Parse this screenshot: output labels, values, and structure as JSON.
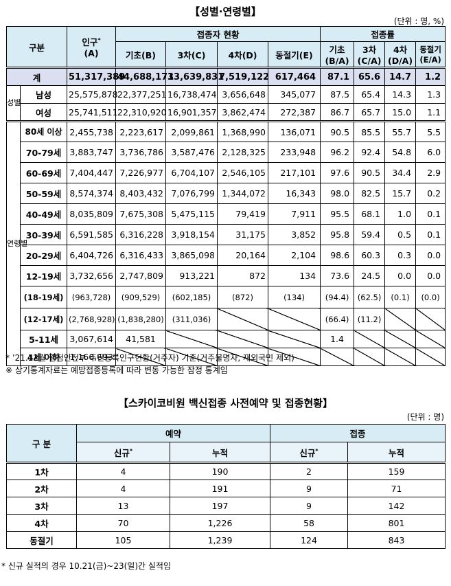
{
  "doc": {
    "title1": "【성별·연령별】",
    "unit1": "(단위 : 명, %)",
    "title2": "【스카이코비원 백신접종 사전예약 및 접종현황】",
    "unit2": "(단위 : 명)",
    "note1": "* ’21.12월 행정안전부 주민등록인구현황(거주자) 기준(거주불명자, 재외국민 제외)",
    "note2": "※ 상기통계자료는 예방접종등록에 따라 변동 가능한 잠정 통계임",
    "note3": "* 신규 실적의 경우 10.21(금)~23(일)간 실적임"
  },
  "t1": {
    "h_gubun": "구분",
    "h_pop": "인구",
    "h_pop_sup": "*",
    "h_pop_sub": "(A)",
    "h_vax": "접종자 현황",
    "h_rate": "접종률",
    "h_basic": "기초(B)",
    "h_3rd": "3차(C)",
    "h_4th": "4차(D)",
    "h_winter": "동절기(E)",
    "h_r_basic": "기초",
    "h_r_basic2": "(B/A)",
    "h_r_3rd": "3차",
    "h_r_3rd2": "(C/A)",
    "h_r_4th": "4차",
    "h_r_4th2": "(D/A)",
    "h_r_winter": "동절기",
    "h_r_winter2": "(E/A)",
    "side_sex": "성별",
    "side_age": "연령별",
    "total": {
      "label": "계",
      "pop": "51,317,389",
      "basic": "44,688,171",
      "third": "33,639,831",
      "fourth": "7,519,122",
      "winter": "617,464",
      "r1": "87.1",
      "r2": "65.6",
      "r3": "14.7",
      "r4": "1.2"
    },
    "rows": [
      {
        "label": "남성",
        "pop": "25,575,878",
        "basic": "22,377,251",
        "third": "16,738,474",
        "fourth": "3,656,648",
        "winter": "345,077",
        "r1": "87.5",
        "r2": "65.4",
        "r3": "14.3",
        "r4": "1.3"
      },
      {
        "label": "여성",
        "pop": "25,741,511",
        "basic": "22,310,920",
        "third": "16,901,357",
        "fourth": "3,862,474",
        "winter": "272,387",
        "r1": "86.7",
        "r2": "65.7",
        "r3": "15.0",
        "r4": "1.1"
      },
      {
        "label": "80세 이상",
        "pop": "2,455,738",
        "basic": "2,223,617",
        "third": "2,099,861",
        "fourth": "1,368,990",
        "winter": "136,071",
        "r1": "90.5",
        "r2": "85.5",
        "r3": "55.7",
        "r4": "5.5"
      },
      {
        "label": "70-79세",
        "pop": "3,883,747",
        "basic": "3,736,786",
        "third": "3,587,476",
        "fourth": "2,128,325",
        "winter": "233,948",
        "r1": "96.2",
        "r2": "92.4",
        "r3": "54.8",
        "r4": "6.0"
      },
      {
        "label": "60-69세",
        "pop": "7,404,447",
        "basic": "7,226,977",
        "third": "6,704,107",
        "fourth": "2,546,105",
        "winter": "217,101",
        "r1": "97.6",
        "r2": "90.5",
        "r3": "34.4",
        "r4": "2.9"
      },
      {
        "label": "50-59세",
        "pop": "8,574,374",
        "basic": "8,403,432",
        "third": "7,076,799",
        "fourth": "1,344,072",
        "winter": "16,343",
        "r1": "98.0",
        "r2": "82.5",
        "r3": "15.7",
        "r4": "0.2"
      },
      {
        "label": "40-49세",
        "pop": "8,035,809",
        "basic": "7,675,308",
        "third": "5,475,115",
        "fourth": "79,419",
        "winter": "7,911",
        "r1": "95.5",
        "r2": "68.1",
        "r3": "1.0",
        "r4": "0.1"
      },
      {
        "label": "30-39세",
        "pop": "6,591,585",
        "basic": "6,316,228",
        "third": "3,918,154",
        "fourth": "31,175",
        "winter": "3,852",
        "r1": "95.8",
        "r2": "59.4",
        "r3": "0.5",
        "r4": "0.1"
      },
      {
        "label": "20-29세",
        "pop": "6,404,726",
        "basic": "6,316,433",
        "third": "3,865,098",
        "fourth": "20,164",
        "winter": "2,104",
        "r1": "98.6",
        "r2": "60.3",
        "r3": "0.3",
        "r4": "0.0"
      },
      {
        "label": "12-19세",
        "pop": "3,732,656",
        "basic": "2,747,809",
        "third": "913,221",
        "fourth": "872",
        "winter": "134",
        "r1": "73.6",
        "r2": "24.5",
        "r3": "0.0",
        "r4": "0.0"
      }
    ],
    "sub1": {
      "label": "(18-19세)",
      "pop": "(963,728)",
      "basic": "(909,529)",
      "third": "(602,185)",
      "fourth": "(872)",
      "winter": "(134)",
      "r1": "(94.4)",
      "r2": "(62.5)",
      "r3": "(0.1)",
      "r4": "(0.0)"
    },
    "sub2": {
      "label": "(12-17세)",
      "pop": "(2,768,928)",
      "basic": "(1,838,280)",
      "third": "(311,036)",
      "r1": "(66.4)",
      "r2": "(11.2)"
    },
    "age511": {
      "label": "5-11세",
      "pop": "3,067,614",
      "basic": "41,581",
      "r1": "1.4"
    },
    "age4": {
      "label": "4세 이하",
      "pop": "1,166,693"
    }
  },
  "t2": {
    "h_gubun": "구 분",
    "h_resv": "예약",
    "h_vax": "접종",
    "h_new": "신규",
    "h_new_sup": "*",
    "h_cum": "누적",
    "rows": [
      {
        "label": "1차",
        "rn": "4",
        "rc": "190",
        "vn": "2",
        "vc": "159"
      },
      {
        "label": "2차",
        "rn": "4",
        "rc": "191",
        "vn": "9",
        "vc": "71"
      },
      {
        "label": "3차",
        "rn": "13",
        "rc": "197",
        "vn": "9",
        "vc": "142"
      },
      {
        "label": "4차",
        "rn": "70",
        "rc": "1,226",
        "vn": "58",
        "vc": "801"
      },
      {
        "label": "동절기",
        "rn": "105",
        "rc": "1,239",
        "vn": "124",
        "vc": "843"
      }
    ]
  }
}
